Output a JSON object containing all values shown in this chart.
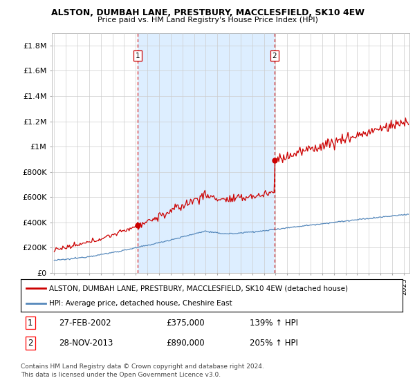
{
  "title": "ALSTON, DUMBAH LANE, PRESTBURY, MACCLESFIELD, SK10 4EW",
  "subtitle": "Price paid vs. HM Land Registry's House Price Index (HPI)",
  "ylabel_ticks": [
    0,
    200000,
    400000,
    600000,
    800000,
    1000000,
    1200000,
    1400000,
    1600000,
    1800000
  ],
  "ylabel_labels": [
    "£0",
    "£200K",
    "£400K",
    "£600K",
    "£800K",
    "£1M",
    "£1.2M",
    "£1.4M",
    "£1.6M",
    "£1.8M"
  ],
  "ylim": [
    0,
    1900000
  ],
  "xlim_start": 1994.8,
  "xlim_end": 2025.5,
  "sale1_x": 2002.15,
  "sale1_y": 375000,
  "sale2_x": 2013.9,
  "sale2_y": 890000,
  "legend_line1": "ALSTON, DUMBAH LANE, PRESTBURY, MACCLESFIELD, SK10 4EW (detached house)",
  "legend_line2": "HPI: Average price, detached house, Cheshire East",
  "table_row1": [
    "1",
    "27-FEB-2002",
    "£375,000",
    "139% ↑ HPI"
  ],
  "table_row2": [
    "2",
    "28-NOV-2013",
    "£890,000",
    "205% ↑ HPI"
  ],
  "footer1": "Contains HM Land Registry data © Crown copyright and database right 2024.",
  "footer2": "This data is licensed under the Open Government Licence v3.0.",
  "red_color": "#cc0000",
  "blue_color": "#5588bb",
  "shade_color": "#ddeeff",
  "background_color": "#ffffff",
  "grid_color": "#cccccc"
}
